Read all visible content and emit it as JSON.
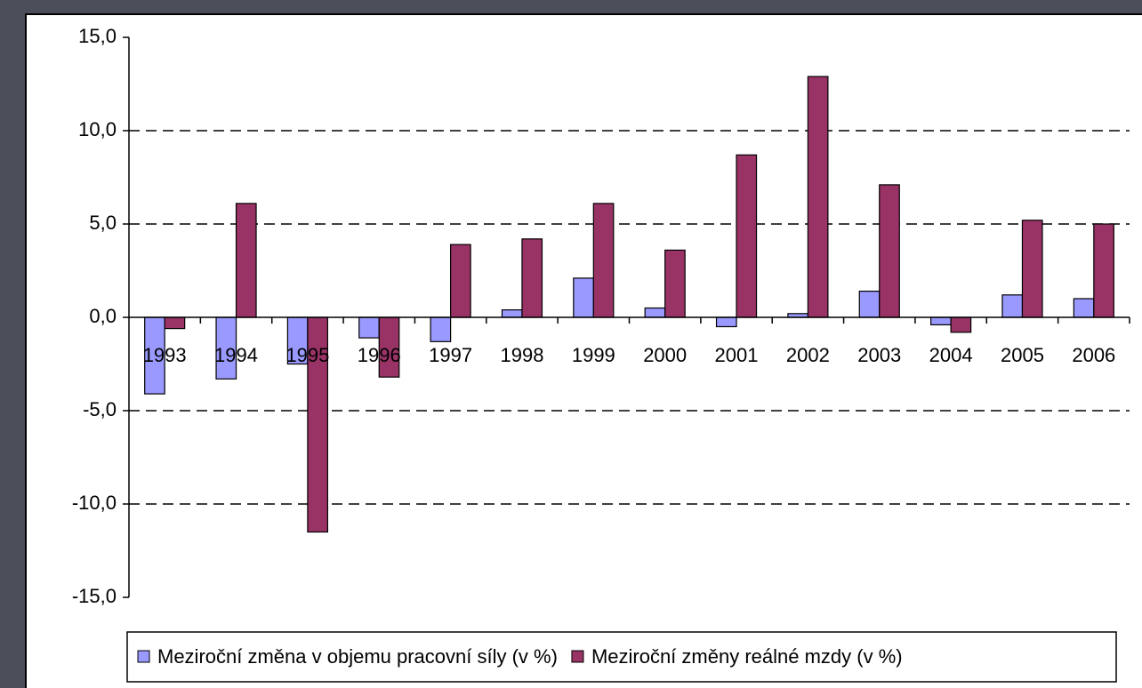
{
  "chart_data": {
    "type": "bar",
    "categories": [
      "1993",
      "1994",
      "1995",
      "1996",
      "1997",
      "1998",
      "1999",
      "2000",
      "2001",
      "2002",
      "2003",
      "2004",
      "2005",
      "2006"
    ],
    "series": [
      {
        "name": "Meziroční změna v objemu pracovní síly (v %)",
        "color": "#9999ff",
        "values": [
          -4.1,
          -3.3,
          -2.5,
          -1.1,
          -1.3,
          0.4,
          2.1,
          0.5,
          -0.5,
          0.2,
          1.4,
          -0.4,
          1.2,
          1.0
        ]
      },
      {
        "name": "Meziroční změny reálné mzdy (v %)",
        "color": "#993366",
        "values": [
          -0.6,
          6.1,
          -11.5,
          -3.2,
          3.9,
          4.2,
          6.1,
          3.6,
          8.7,
          12.9,
          7.1,
          -0.8,
          5.2,
          5.0
        ]
      }
    ],
    "ylim": [
      -15,
      15
    ],
    "yticks": [
      {
        "value": -15,
        "label": "-15,0"
      },
      {
        "value": -10,
        "label": "-10,0"
      },
      {
        "value": -5,
        "label": "-5,0"
      },
      {
        "value": 0,
        "label": "0,0"
      },
      {
        "value": 5,
        "label": "5,0"
      },
      {
        "value": 10,
        "label": "10,0"
      },
      {
        "value": 15,
        "label": "15,0"
      }
    ],
    "grid": true,
    "legend": "bottom"
  }
}
